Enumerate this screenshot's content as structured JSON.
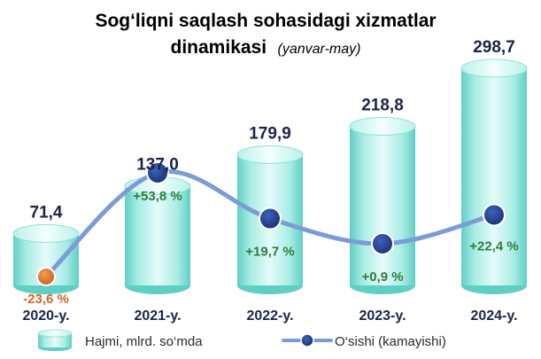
{
  "chart_data": {
    "type": "bar",
    "title": "Sog‘liqni saqlash sohasidagi xizmatlar",
    "title_line2": "dinamikasi",
    "subtitle": "(yanvar-may)",
    "categories": [
      "2020-y.",
      "2021-y.",
      "2022-y.",
      "2023-y.",
      "2024-y."
    ],
    "series": [
      {
        "name": "Hajmi, mlrd. so‘mda",
        "type": "bar",
        "values": [
          71.4,
          137.0,
          179.9,
          218.8,
          298.7
        ],
        "labels": [
          "71,4",
          "137,0",
          "179,9",
          "218,8",
          "298,7"
        ]
      },
      {
        "name": "O‘sishi (kamayishi)",
        "type": "line",
        "values": [
          -23.6,
          53.8,
          19.7,
          0.9,
          22.4
        ],
        "labels": [
          "-23,6 %",
          "+53,8 %",
          "+19,7 %",
          "+0,9 %",
          "+22,4 %"
        ]
      }
    ],
    "bar_ylim": [
      0,
      320
    ],
    "line_ylim": [
      -35,
      75
    ],
    "legend_position": "bottom",
    "grid": false,
    "colors": {
      "title": "#7b3fa8",
      "subtitle": "#4a7bd8",
      "cylinder_light": "#e6fbf9",
      "cylinder_mid": "#a8ece4",
      "cylinder_dark": "#5fcfc4",
      "line": "#7b9cd6",
      "marker": "#1e3f8f",
      "marker_negative": "#e07a2c",
      "positive_label": "#2e7d3e",
      "negative_label": "#d9622b",
      "text_dark": "#1b2447"
    }
  }
}
